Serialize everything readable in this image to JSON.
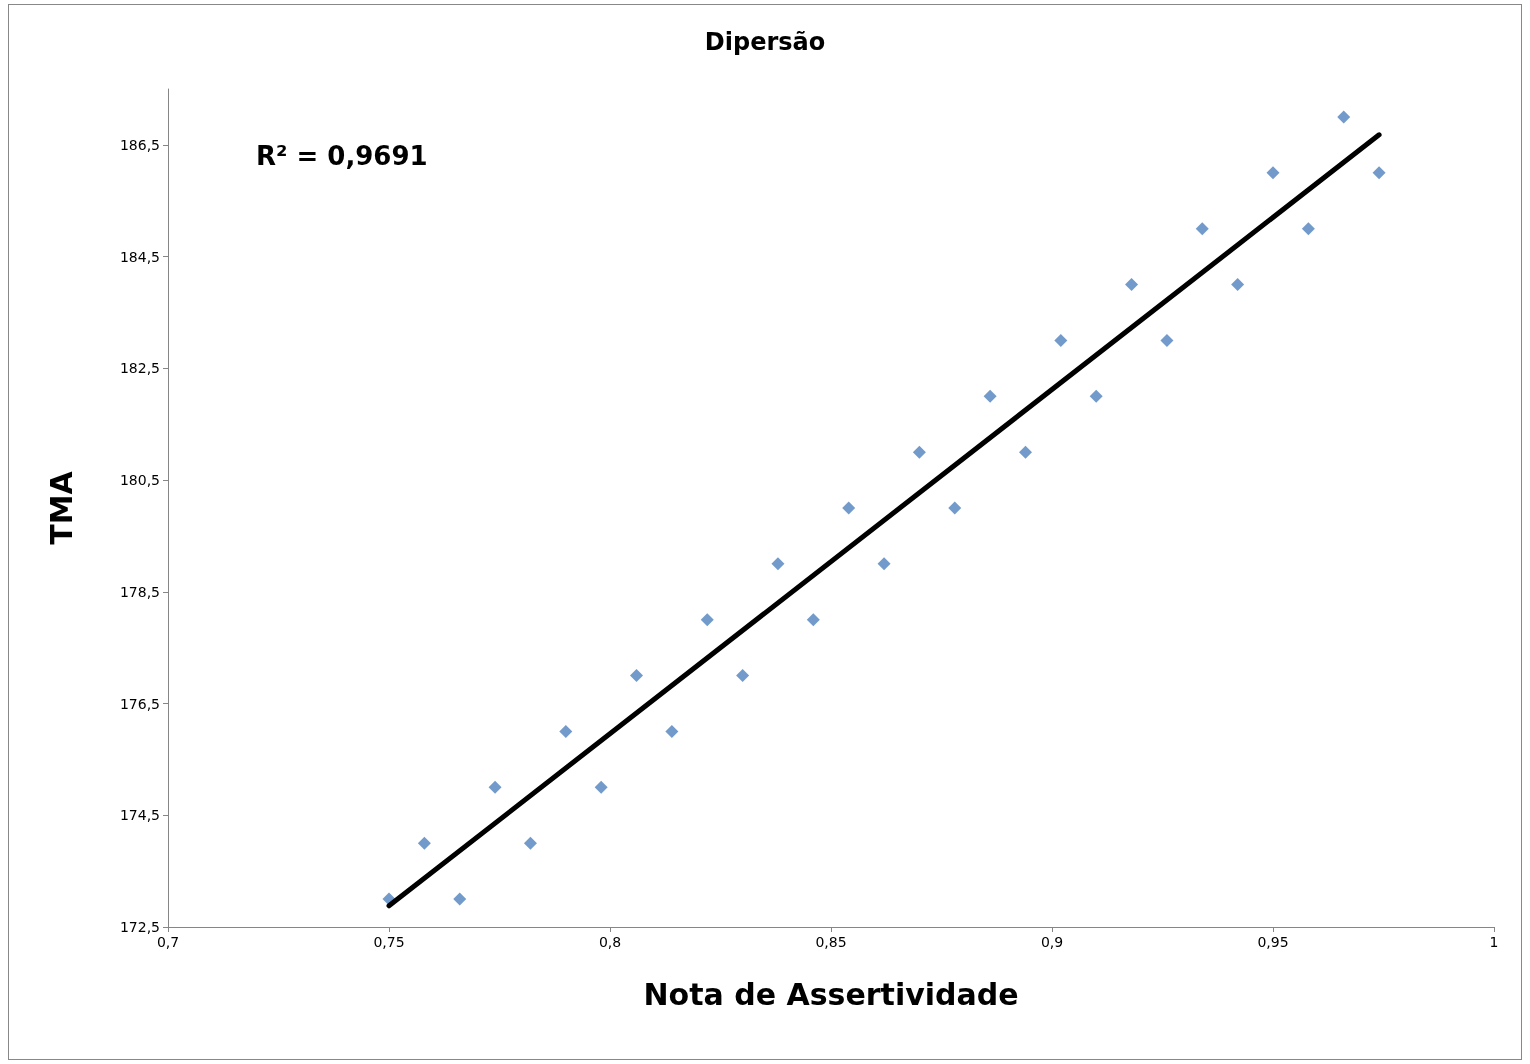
{
  "chart_data": {
    "type": "scatter",
    "title": "Dipersão",
    "xlabel": "Nota de Assertividade",
    "ylabel": "TMA",
    "annotations": [
      "R² = 0,9691"
    ],
    "xlim": [
      0.7,
      1
    ],
    "xticks": [
      {
        "value": 0.7,
        "label": "0,7"
      },
      {
        "value": 0.75,
        "label": "0,75"
      },
      {
        "value": 0.8,
        "label": "0,8"
      },
      {
        "value": 0.85,
        "label": "0,85"
      },
      {
        "value": 0.9,
        "label": "0,9"
      },
      {
        "value": 0.95,
        "label": "0,95"
      },
      1
    ],
    "ylim": [
      172.5,
      187.5
    ],
    "yticks": [
      {
        "value": 172.5,
        "label": "172,5"
      },
      {
        "value": 174.5,
        "label": "174,5"
      },
      {
        "value": 176.5,
        "label": "176,5"
      },
      {
        "value": 178.5,
        "label": "178,5"
      },
      {
        "value": 180.5,
        "label": "180,5"
      },
      {
        "value": 182.5,
        "label": "182,5"
      },
      {
        "value": 184.5,
        "label": "184,5"
      },
      {
        "value": 186.5,
        "label": "186,5"
      }
    ],
    "grid": false,
    "marker": "diamond",
    "series": [
      {
        "type": "scatter",
        "color": "#4f81bd",
        "x": [
          0.75,
          0.758,
          0.766,
          0.774,
          0.782,
          0.79,
          0.798,
          0.806,
          0.814,
          0.822,
          0.83,
          0.838,
          0.846,
          0.854,
          0.862,
          0.87,
          0.878,
          0.886,
          0.894,
          0.902,
          0.91,
          0.918,
          0.926,
          0.934,
          0.942,
          0.95,
          0.958,
          0.966,
          0.974
        ],
        "values": [
          173,
          174,
          173,
          175,
          174,
          176,
          175,
          177,
          176,
          178,
          177,
          179,
          178,
          180,
          179,
          181,
          180,
          182,
          181,
          183,
          182,
          184,
          183,
          185,
          184,
          186,
          185,
          187,
          186
        ]
      },
      {
        "type": "line",
        "color": "#000000",
        "marker": "none",
        "line_style": "solid",
        "x": [
          0.75,
          0.974
        ],
        "values": [
          172.88,
          186.68
        ]
      }
    ]
  }
}
